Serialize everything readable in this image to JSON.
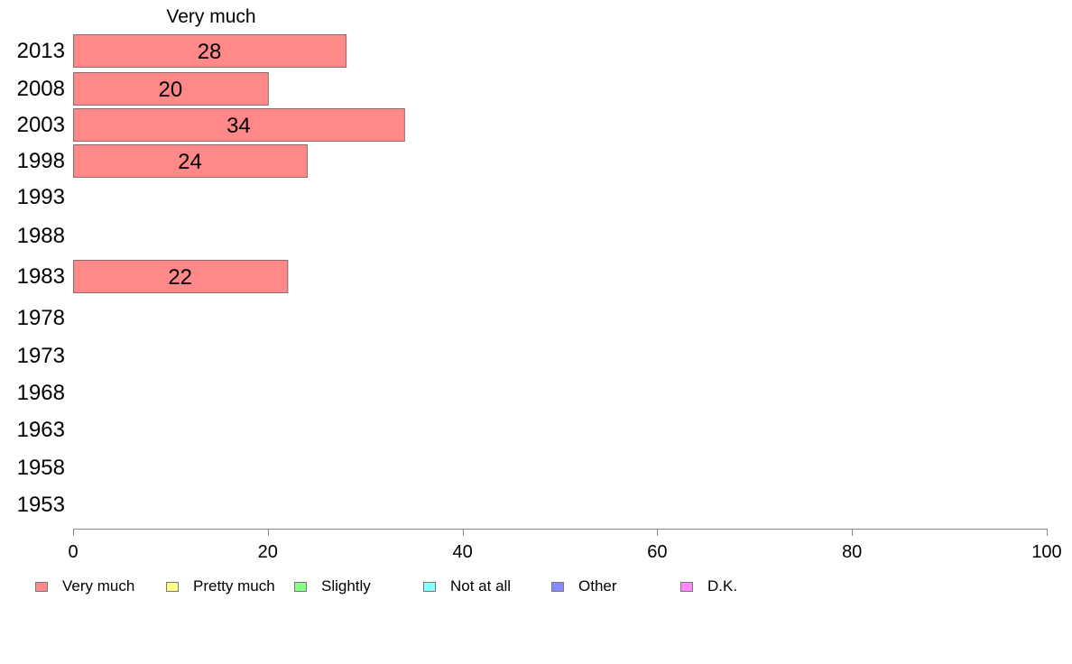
{
  "chart_data": {
    "type": "bar",
    "orientation": "horizontal",
    "column_header": "Very much",
    "categories": [
      "2013",
      "2008",
      "2003",
      "1998",
      "1993",
      "1988",
      "1983",
      "1978",
      "1973",
      "1968",
      "1963",
      "1958",
      "1953"
    ],
    "series": [
      {
        "name": "Very much",
        "color": "#ff8888",
        "values": [
          28,
          20,
          34,
          24,
          null,
          null,
          22,
          null,
          null,
          null,
          null,
          null,
          null
        ],
        "labels": [
          "28",
          "20",
          "34",
          "24",
          "",
          "",
          "22",
          "",
          "",
          "",
          "",
          "",
          ""
        ]
      }
    ],
    "xlim": [
      0,
      100
    ],
    "xticks": [
      "0",
      "20",
      "40",
      "60",
      "80",
      "100"
    ],
    "grid": false,
    "legend_position": "bottom",
    "legend": [
      {
        "label": "Very much",
        "color": "#ff8888"
      },
      {
        "label": "Pretty much",
        "color": "#ffff88"
      },
      {
        "label": "Slightly",
        "color": "#88ff88"
      },
      {
        "label": "Not at all",
        "color": "#88ffff"
      },
      {
        "label": "Other",
        "color": "#8888ff"
      },
      {
        "label": "D.K.",
        "color": "#ff88ff"
      }
    ]
  }
}
